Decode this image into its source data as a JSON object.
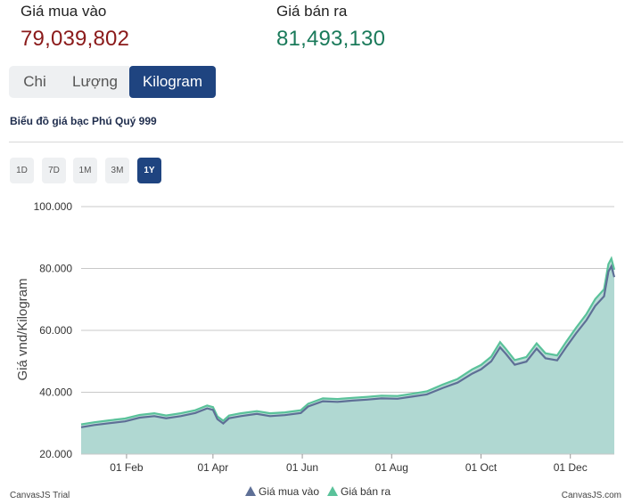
{
  "prices": {
    "buy_label": "Giá mua vào",
    "buy_value": "79,039,802",
    "sell_label": "Giá bán ra",
    "sell_value": "81,493,130"
  },
  "unit_tabs": [
    {
      "label": "Chi",
      "active": false
    },
    {
      "label": "Lượng",
      "active": false
    },
    {
      "label": "Kilogram",
      "active": true
    }
  ],
  "chart_title": "Biểu đồ giá bạc Phú Quý 999",
  "range_buttons": [
    {
      "label": "1D",
      "active": false
    },
    {
      "label": "7D",
      "active": false
    },
    {
      "label": "1M",
      "active": false
    },
    {
      "label": "3M",
      "active": false
    },
    {
      "label": "1Y",
      "active": true
    }
  ],
  "chart_data": {
    "type": "area",
    "ylabel": "Giá vnd/Kilogram",
    "ylim": [
      20000,
      100000
    ],
    "yticks": [
      20000,
      40000,
      60000,
      80000,
      100000
    ],
    "ytick_labels": [
      "20.000",
      "40.000",
      "60.000",
      "80.000",
      "100.000"
    ],
    "xlim": [
      "2025-01-01",
      "2025-12-31"
    ],
    "xticks": [
      "2025-02-01",
      "2025-04-01",
      "2025-06-01",
      "2025-08-01",
      "2025-10-01",
      "2025-12-01"
    ],
    "xtick_labels": [
      "01 Feb",
      "01 Apr",
      "01 Jun",
      "01 Aug",
      "01 Oct",
      "01 Dec"
    ],
    "grid": true,
    "legend_position": "bottom-center",
    "series": [
      {
        "name": "Giá mua vào",
        "color": "#5e6f96",
        "points": [
          [
            "2025-01-01",
            28700
          ],
          [
            "2025-01-10",
            29400
          ],
          [
            "2025-01-20",
            30000
          ],
          [
            "2025-01-31",
            30600
          ],
          [
            "2025-02-10",
            31800
          ],
          [
            "2025-02-20",
            32300
          ],
          [
            "2025-02-28",
            31600
          ],
          [
            "2025-03-10",
            32300
          ],
          [
            "2025-03-20",
            33300
          ],
          [
            "2025-03-28",
            34800
          ],
          [
            "2025-04-01",
            34300
          ],
          [
            "2025-04-04",
            31300
          ],
          [
            "2025-04-08",
            29900
          ],
          [
            "2025-04-12",
            31600
          ],
          [
            "2025-04-20",
            32300
          ],
          [
            "2025-05-01",
            33000
          ],
          [
            "2025-05-10",
            32300
          ],
          [
            "2025-05-20",
            32600
          ],
          [
            "2025-05-31",
            33300
          ],
          [
            "2025-06-05",
            35400
          ],
          [
            "2025-06-15",
            37100
          ],
          [
            "2025-06-25",
            36900
          ],
          [
            "2025-07-05",
            37300
          ],
          [
            "2025-07-15",
            37600
          ],
          [
            "2025-07-25",
            38000
          ],
          [
            "2025-08-05",
            37900
          ],
          [
            "2025-08-15",
            38600
          ],
          [
            "2025-08-25",
            39300
          ],
          [
            "2025-09-05",
            41400
          ],
          [
            "2025-09-15",
            43100
          ],
          [
            "2025-09-25",
            46000
          ],
          [
            "2025-10-01",
            47400
          ],
          [
            "2025-10-08",
            50000
          ],
          [
            "2025-10-14",
            54500
          ],
          [
            "2025-10-18",
            52400
          ],
          [
            "2025-10-24",
            48900
          ],
          [
            "2025-11-01",
            49900
          ],
          [
            "2025-11-08",
            54100
          ],
          [
            "2025-11-14",
            51000
          ],
          [
            "2025-11-22",
            50300
          ],
          [
            "2025-11-28",
            54500
          ],
          [
            "2025-12-05",
            59100
          ],
          [
            "2025-12-12",
            63300
          ],
          [
            "2025-12-18",
            67900
          ],
          [
            "2025-12-24",
            71000
          ],
          [
            "2025-12-27",
            79000
          ],
          [
            "2025-12-29",
            80700
          ],
          [
            "2025-12-31",
            77200
          ]
        ]
      },
      {
        "name": "Giá bán ra",
        "color": "#5ac29a",
        "points": [
          [
            "2025-01-01",
            29600
          ],
          [
            "2025-01-10",
            30300
          ],
          [
            "2025-01-20",
            30900
          ],
          [
            "2025-01-31",
            31500
          ],
          [
            "2025-02-10",
            32700
          ],
          [
            "2025-02-20",
            33200
          ],
          [
            "2025-02-28",
            32500
          ],
          [
            "2025-03-10",
            33200
          ],
          [
            "2025-03-20",
            34200
          ],
          [
            "2025-03-28",
            35700
          ],
          [
            "2025-04-01",
            35200
          ],
          [
            "2025-04-04",
            32200
          ],
          [
            "2025-04-08",
            30800
          ],
          [
            "2025-04-12",
            32500
          ],
          [
            "2025-04-20",
            33200
          ],
          [
            "2025-05-01",
            33900
          ],
          [
            "2025-05-10",
            33200
          ],
          [
            "2025-05-20",
            33500
          ],
          [
            "2025-05-31",
            34200
          ],
          [
            "2025-06-05",
            36300
          ],
          [
            "2025-06-15",
            38000
          ],
          [
            "2025-06-25",
            37800
          ],
          [
            "2025-07-05",
            38200
          ],
          [
            "2025-07-15",
            38500
          ],
          [
            "2025-07-25",
            38900
          ],
          [
            "2025-08-05",
            38800
          ],
          [
            "2025-08-15",
            39500
          ],
          [
            "2025-08-25",
            40300
          ],
          [
            "2025-09-05",
            42500
          ],
          [
            "2025-09-15",
            44300
          ],
          [
            "2025-09-25",
            47400
          ],
          [
            "2025-10-01",
            48800
          ],
          [
            "2025-10-08",
            51500
          ],
          [
            "2025-10-14",
            56200
          ],
          [
            "2025-10-18",
            54000
          ],
          [
            "2025-10-24",
            50400
          ],
          [
            "2025-11-01",
            51400
          ],
          [
            "2025-11-08",
            55800
          ],
          [
            "2025-11-14",
            52600
          ],
          [
            "2025-11-22",
            51900
          ],
          [
            "2025-11-28",
            56200
          ],
          [
            "2025-12-05",
            60900
          ],
          [
            "2025-12-12",
            65300
          ],
          [
            "2025-12-18",
            70100
          ],
          [
            "2025-12-24",
            73300
          ],
          [
            "2025-12-27",
            81400
          ],
          [
            "2025-12-29",
            83200
          ],
          [
            "2025-12-31",
            79600
          ]
        ]
      }
    ]
  },
  "credits": {
    "left": "CanvasJS Trial",
    "right": "CanvasJS.com"
  }
}
